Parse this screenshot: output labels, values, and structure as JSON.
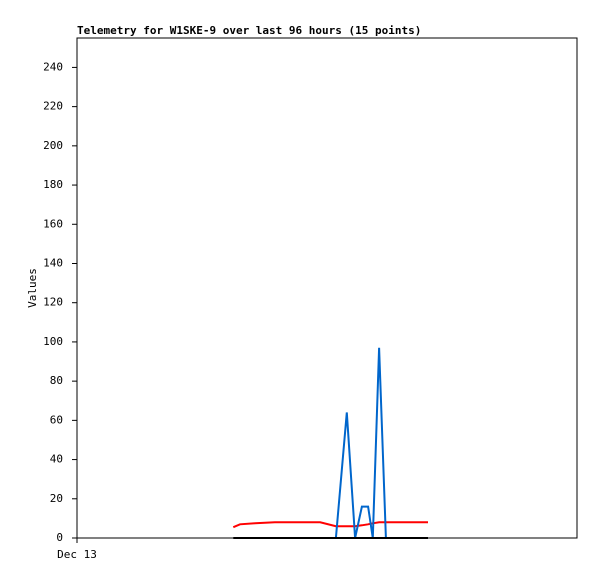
{
  "chart_data": {
    "type": "line",
    "title": "Telemetry for W1SKE-9 over last 96 hours (15 points)",
    "y_label": "Values",
    "x": [
      30,
      31.3,
      34.2,
      38,
      46.7,
      49.7,
      51.8,
      53.4,
      54.7,
      55.9,
      56.8,
      58,
      59.3,
      63.9,
      67.4
    ],
    "xlim": [
      0,
      96
    ],
    "xticks": [
      {
        "value": 0,
        "label": "Dec 13"
      }
    ],
    "ylim": [
      0,
      255
    ],
    "yticks": [
      0,
      20,
      40,
      60,
      80,
      100,
      120,
      140,
      160,
      180,
      200,
      220,
      240
    ],
    "series": [
      {
        "color": "#ff0000",
        "values": [
          5.5,
          7,
          7.5,
          8,
          8,
          6,
          6,
          6,
          6.5,
          7,
          7.5,
          8,
          8,
          8,
          8
        ]
      },
      {
        "color": "#0066cc",
        "values": [
          null,
          null,
          null,
          null,
          null,
          0,
          64,
          0,
          16,
          16,
          0,
          97,
          0,
          null,
          null
        ]
      },
      {
        "color": "#000000",
        "values": [
          0,
          0,
          0,
          0,
          0,
          0,
          0,
          0,
          0,
          0,
          0,
          0,
          0,
          0,
          0
        ]
      }
    ]
  }
}
